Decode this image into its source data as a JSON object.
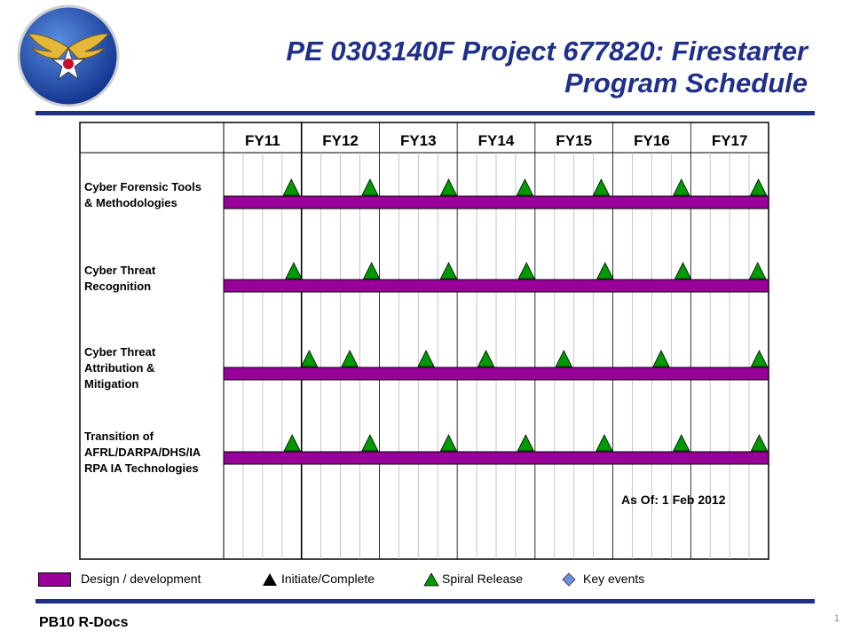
{
  "title": {
    "line1": "PE 0303140F Project 677820: Firestarter",
    "line2": "Program Schedule"
  },
  "footer": "PB10 R-Docs",
  "page_number": "1",
  "as_of": "As Of: 1 Feb 2012",
  "colors": {
    "title": "#1f2f8a",
    "bar": "#990099",
    "spiral": "#009900",
    "key_event": "#6f8fdf",
    "rule": "#1f2f8a"
  },
  "legend": {
    "design_label": "Design / development",
    "initiate_label": "Initiate/Complete",
    "spiral_label": "Spiral Release",
    "key_events_label": "Key events"
  },
  "chart_data": {
    "type": "gantt",
    "categories": [
      "FY11",
      "FY12",
      "FY13",
      "FY14",
      "FY15",
      "FY16",
      "FY17"
    ],
    "rows": [
      {
        "label": [
          "Cyber Forensic Tools",
          "& Methodologies"
        ],
        "bar": [
          "FY11",
          "FY17"
        ],
        "spiral_releases": [
          11.87,
          12.88,
          13.89,
          14.87,
          15.85,
          16.88,
          17.87
        ]
      },
      {
        "label": [
          "Cyber Threat",
          "Recognition"
        ],
        "bar": [
          "FY11",
          "FY17"
        ],
        "spiral_releases": [
          11.9,
          12.9,
          13.89,
          14.89,
          15.9,
          16.9,
          17.86
        ]
      },
      {
        "label": [
          "Cyber Threat",
          "Attribution &",
          "Mitigation"
        ],
        "bar": [
          "FY11",
          "FY17"
        ],
        "spiral_releases": [
          12.1,
          12.62,
          13.6,
          14.37,
          15.37,
          16.62,
          17.88
        ]
      },
      {
        "label": [
          "Transition of",
          "AFRL/DARPA/DHS/IA",
          "RPA IA Technologies"
        ],
        "bar": [
          "FY11",
          "FY17"
        ],
        "spiral_releases": [
          11.88,
          12.88,
          13.89,
          14.88,
          15.89,
          16.88,
          17.88
        ]
      }
    ]
  }
}
